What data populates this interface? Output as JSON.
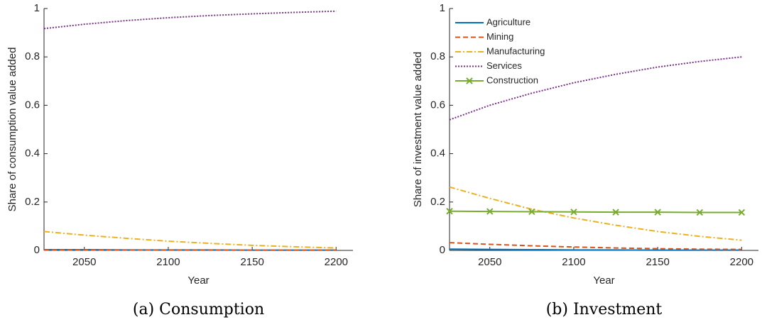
{
  "chart_data": [
    {
      "type": "line",
      "xlabel": "Year",
      "ylabel": "Share of consumption value added",
      "caption": "(a) Consumption",
      "x": [
        2026,
        2050,
        2075,
        2100,
        2125,
        2150,
        2175,
        2200
      ],
      "xlim": [
        2026,
        2210
      ],
      "xticks": [
        2050,
        2100,
        2150,
        2200
      ],
      "ylim": [
        0,
        1
      ],
      "yticks": [
        0,
        0.2,
        0.4,
        0.6,
        0.8,
        1
      ],
      "series": [
        {
          "color": "#0072BD",
          "dash": "solid",
          "values": [
            0.003,
            0.003,
            0.002,
            0.002,
            0.002,
            0.001,
            0.001,
            0.001
          ]
        },
        {
          "color": "#D95319",
          "dash": "dashed",
          "values": [
            0.002,
            0.002,
            0.002,
            0.001,
            0.001,
            0.001,
            0.001,
            0.001
          ]
        },
        {
          "color": "#EDB120",
          "dash": "dashdot",
          "values": [
            0.078,
            0.063,
            0.05,
            0.038,
            0.029,
            0.021,
            0.015,
            0.01
          ]
        },
        {
          "color": "#7E2F8E",
          "dash": "dotted",
          "values": [
            0.917,
            0.935,
            0.95,
            0.962,
            0.971,
            0.978,
            0.984,
            0.989
          ]
        }
      ]
    },
    {
      "type": "line",
      "xlabel": "Year",
      "ylabel": "Share of investment value added",
      "caption": "(b) Investment",
      "x": [
        2026,
        2050,
        2075,
        2100,
        2125,
        2150,
        2175,
        2200
      ],
      "xlim": [
        2026,
        2210
      ],
      "xticks": [
        2050,
        2100,
        2150,
        2200
      ],
      "ylim": [
        0,
        1
      ],
      "yticks": [
        0,
        0.2,
        0.4,
        0.6,
        0.8,
        1
      ],
      "legend": "upper left",
      "series": [
        {
          "name": "Agriculture",
          "color": "#0072BD",
          "dash": "solid",
          "values": [
            0.005,
            0.004,
            0.003,
            0.002,
            0.002,
            0.001,
            0.001,
            0.001
          ]
        },
        {
          "name": "Mining",
          "color": "#D95319",
          "dash": "dashed",
          "values": [
            0.032,
            0.025,
            0.019,
            0.014,
            0.01,
            0.007,
            0.005,
            0.004
          ]
        },
        {
          "name": "Manufacturing",
          "color": "#EDB120",
          "dash": "dashdot",
          "values": [
            0.262,
            0.215,
            0.17,
            0.134,
            0.104,
            0.078,
            0.058,
            0.042
          ]
        },
        {
          "name": "Services",
          "color": "#7E2F8E",
          "dash": "dotted",
          "values": [
            0.54,
            0.6,
            0.65,
            0.693,
            0.728,
            0.758,
            0.781,
            0.8
          ]
        },
        {
          "name": "Construction",
          "color": "#77AC30",
          "dash": "solid",
          "marker": "x",
          "values": [
            0.162,
            0.161,
            0.16,
            0.159,
            0.158,
            0.158,
            0.157,
            0.157
          ]
        }
      ]
    }
  ]
}
